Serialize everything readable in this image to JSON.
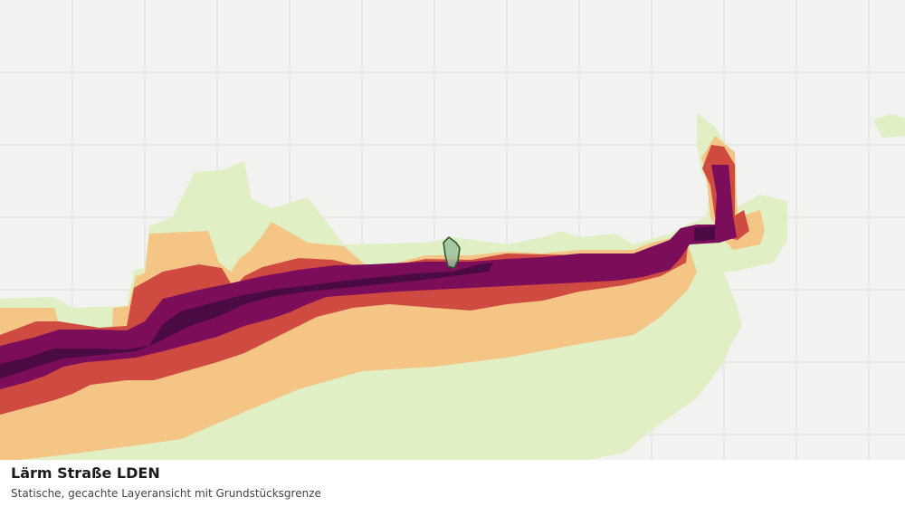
{
  "map": {
    "layer_name": "Lärm Straße LDEN",
    "description": "Statische, gecachte Layeransicht mit Grundstücksgrenze",
    "colors": {
      "background": "#f2f3f1",
      "grid": "#dcdddb",
      "band_lowest": "#e0efc4",
      "band_low": "#f4c585",
      "band_mid": "#cf4a40",
      "band_high": "#7b0d5a",
      "band_highest": "#4a0a44",
      "parcel_fill": "#9cbfa0",
      "parcel_outline": "#2c5a30"
    }
  }
}
